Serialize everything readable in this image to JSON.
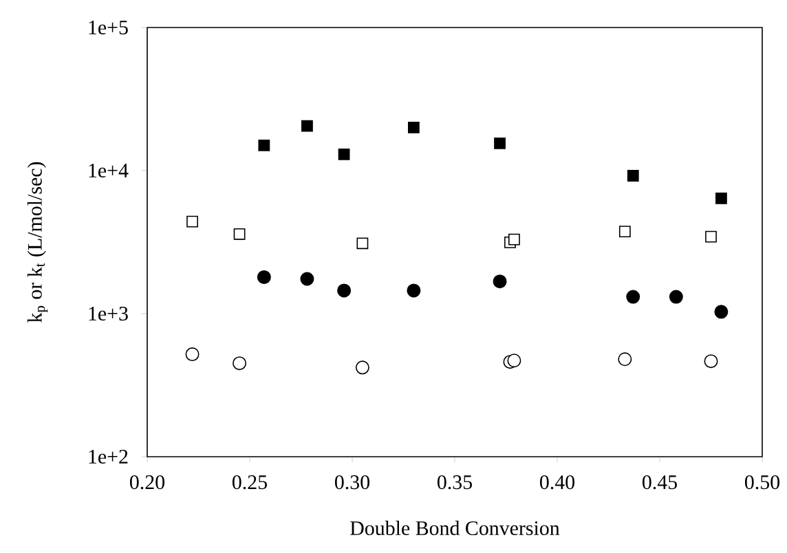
{
  "chart_data": {
    "type": "scatter",
    "xlabel": "Double Bond Conversion",
    "ylabel": "k$_{p}$ or k$_{t}$ (L/mol/sec)",
    "log": "y",
    "xlim": [
      0.2,
      0.5
    ],
    "xticks": [
      {
        "value": 0.2,
        "label": "0.20"
      },
      {
        "value": 0.25,
        "label": "0.25"
      },
      {
        "value": 0.3,
        "label": "0.30"
      },
      {
        "value": 0.35,
        "label": "0.35"
      },
      {
        "value": 0.4,
        "label": "0.40"
      },
      {
        "value": 0.45,
        "label": "0.45"
      },
      {
        "value": 0.5,
        "label": "0.50"
      }
    ],
    "ylim": [
      100,
      100000
    ],
    "yticks": [
      {
        "value": 100,
        "label": "1e+2"
      },
      {
        "value": 1000,
        "label": "1e+3"
      },
      {
        "value": 10000,
        "label": "1e+4"
      },
      {
        "value": 100000,
        "label": "1e+5"
      }
    ],
    "series": [
      {
        "marker": "square",
        "color": "#000000",
        "x": [
          0.257,
          0.278,
          0.296,
          0.33,
          0.372,
          0.437,
          0.48
        ],
        "values": [
          15000,
          20500,
          13000,
          20000,
          15500,
          9200,
          6400
        ]
      },
      {
        "marker": "square",
        "color": "#ffffff",
        "x": [
          0.222,
          0.245,
          0.305,
          0.377,
          0.379,
          0.433,
          0.475
        ],
        "values": [
          4400,
          3600,
          3100,
          3150,
          3300,
          3750,
          3450
        ]
      },
      {
        "marker": "circle",
        "color": "#000000",
        "x": [
          0.257,
          0.278,
          0.296,
          0.33,
          0.372,
          0.437,
          0.458,
          0.48
        ],
        "values": [
          1800,
          1750,
          1450,
          1450,
          1680,
          1310,
          1310,
          1030
        ]
      },
      {
        "marker": "circle",
        "color": "#ffffff",
        "x": [
          0.222,
          0.245,
          0.305,
          0.377,
          0.379,
          0.433,
          0.475
        ],
        "values": [
          520,
          450,
          420,
          460,
          470,
          480,
          465
        ]
      }
    ]
  }
}
